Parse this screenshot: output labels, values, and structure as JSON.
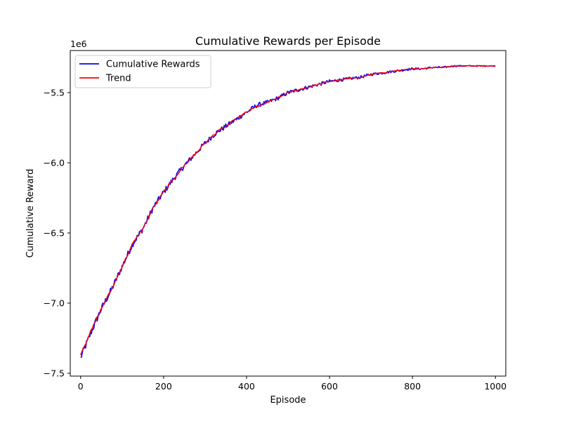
{
  "chart_data": {
    "type": "line",
    "title": "Cumulative Rewards per Episode",
    "xlabel": "Episode",
    "ylabel": "Cumulative Reward",
    "y_offset_label": "1e6",
    "xlim": [
      -25,
      1025
    ],
    "ylim": [
      -7.52,
      -5.2
    ],
    "x_ticks": [
      0,
      200,
      400,
      600,
      800,
      1000
    ],
    "x_tick_labels": [
      "0",
      "200",
      "400",
      "600",
      "800",
      "1000"
    ],
    "y_ticks": [
      -7.5,
      -7.0,
      -6.5,
      -6.0,
      -5.5
    ],
    "y_tick_labels": [
      "−7.5",
      "−7.0",
      "−6.5",
      "−6.0",
      "−5.5"
    ],
    "grid": false,
    "legend_position": "top-left",
    "series": [
      {
        "name": "Cumulative Rewards",
        "color": "#0000ff",
        "style": "noisy",
        "x": [
          0,
          25,
          50,
          75,
          100,
          125,
          150,
          175,
          200,
          225,
          250,
          275,
          300,
          325,
          350,
          375,
          400,
          425,
          450,
          475,
          500,
          525,
          550,
          575,
          600,
          625,
          650,
          675,
          700,
          725,
          750,
          775,
          800,
          825,
          850,
          875,
          900,
          925,
          950,
          975,
          1000
        ],
        "values": [
          -7.39,
          -7.21,
          -7.04,
          -6.9,
          -6.74,
          -6.58,
          -6.47,
          -6.32,
          -6.21,
          -6.11,
          -6.02,
          -5.94,
          -5.86,
          -5.79,
          -5.74,
          -5.69,
          -5.64,
          -5.59,
          -5.57,
          -5.54,
          -5.5,
          -5.48,
          -5.46,
          -5.44,
          -5.42,
          -5.41,
          -5.4,
          -5.39,
          -5.37,
          -5.36,
          -5.35,
          -5.34,
          -5.33,
          -5.33,
          -5.32,
          -5.32,
          -5.31,
          -5.31,
          -5.31,
          -5.31,
          -5.31
        ]
      },
      {
        "name": "Trend",
        "color": "#ff0000",
        "style": "smooth",
        "x": [
          0,
          25,
          50,
          75,
          100,
          125,
          150,
          175,
          200,
          225,
          250,
          275,
          300,
          325,
          350,
          375,
          400,
          425,
          450,
          475,
          500,
          525,
          550,
          575,
          600,
          625,
          650,
          675,
          700,
          725,
          750,
          775,
          800,
          825,
          850,
          875,
          900,
          925,
          950,
          975,
          1000
        ],
        "values": [
          -7.36,
          -7.2,
          -7.04,
          -6.9,
          -6.74,
          -6.58,
          -6.47,
          -6.32,
          -6.21,
          -6.11,
          -6.02,
          -5.94,
          -5.86,
          -5.79,
          -5.74,
          -5.69,
          -5.64,
          -5.6,
          -5.57,
          -5.54,
          -5.5,
          -5.48,
          -5.46,
          -5.44,
          -5.42,
          -5.41,
          -5.4,
          -5.39,
          -5.37,
          -5.36,
          -5.35,
          -5.34,
          -5.33,
          -5.33,
          -5.32,
          -5.32,
          -5.31,
          -5.31,
          -5.31,
          -5.31,
          -5.31
        ]
      }
    ]
  }
}
